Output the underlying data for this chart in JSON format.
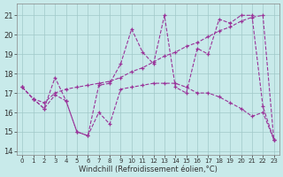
{
  "xlabel": "Windchill (Refroidissement éolien,°C)",
  "x_values": [
    0,
    1,
    2,
    3,
    4,
    5,
    6,
    7,
    8,
    9,
    10,
    11,
    12,
    13,
    14,
    15,
    16,
    17,
    18,
    19,
    20,
    21,
    22,
    23
  ],
  "line1": [
    17.3,
    16.7,
    16.2,
    17.8,
    16.6,
    15.0,
    14.8,
    17.4,
    17.5,
    18.5,
    20.3,
    19.1,
    18.5,
    21.0,
    17.3,
    17.0,
    19.3,
    19.0,
    20.8,
    20.6,
    21.0,
    21.0,
    16.3,
    14.6
  ],
  "line2": [
    17.3,
    16.7,
    16.5,
    17.0,
    17.2,
    17.3,
    17.4,
    17.5,
    17.6,
    17.8,
    18.1,
    18.3,
    18.6,
    18.9,
    19.1,
    19.4,
    19.6,
    19.9,
    20.2,
    20.4,
    20.7,
    20.9,
    21.0,
    14.6
  ],
  "line3": [
    17.3,
    16.7,
    16.2,
    16.9,
    16.6,
    15.0,
    14.8,
    16.0,
    15.4,
    17.2,
    17.3,
    17.4,
    17.5,
    17.5,
    17.5,
    17.3,
    17.0,
    17.0,
    16.8,
    16.5,
    16.2,
    15.8,
    16.0,
    14.6
  ],
  "line_color": "#993399",
  "bg_color": "#c8eaea",
  "grid_color": "#a0c8c8",
  "ylim_min": 13.8,
  "ylim_max": 21.6,
  "yticks": [
    14,
    15,
    16,
    17,
    18,
    19,
    20,
    21
  ],
  "xticks": [
    0,
    1,
    2,
    3,
    4,
    5,
    6,
    7,
    8,
    9,
    10,
    11,
    12,
    13,
    14,
    15,
    16,
    17,
    18,
    19,
    20,
    21,
    22,
    23
  ]
}
